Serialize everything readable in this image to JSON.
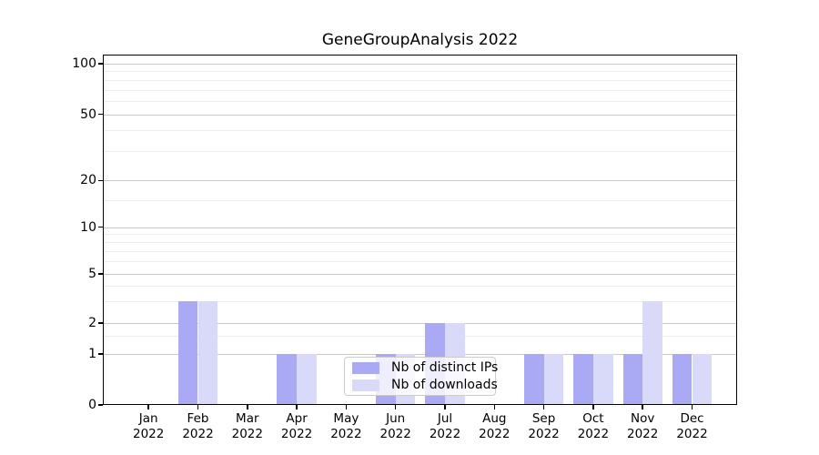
{
  "figure": {
    "title": "GeneGroupAnalysis 2022"
  },
  "chart_data": {
    "type": "bar",
    "title": "GeneGroupAnalysis 2022",
    "categories": [
      "Jan",
      "Feb",
      "Mar",
      "Apr",
      "May",
      "Jun",
      "Jul",
      "Aug",
      "Sep",
      "Oct",
      "Nov",
      "Dec"
    ],
    "x_year_label": "2022",
    "series": [
      {
        "name": "Nb of distinct IPs",
        "color": "#a9a9f4",
        "values": [
          0,
          3,
          0,
          1,
          0,
          1,
          2,
          0,
          1,
          1,
          1,
          1
        ]
      },
      {
        "name": "Nb of downloads",
        "color": "#d9d9f9",
        "values": [
          0,
          3,
          0,
          1,
          0,
          1,
          2,
          0,
          1,
          1,
          3,
          1
        ]
      }
    ],
    "y_axis": {
      "scale": "log-like-1-2-5",
      "major_ticks": [
        0,
        1,
        2,
        5,
        10,
        20,
        50,
        100
      ],
      "minor_ticks": [
        1.5,
        3,
        4,
        6,
        7,
        8,
        9,
        15,
        30,
        40,
        60,
        70,
        80,
        90
      ],
      "ylim": [
        0,
        113
      ],
      "grid": "horizontal major and minor"
    },
    "legend": {
      "position": "inside lower-center",
      "entries": [
        "Nb of distinct IPs",
        "Nb of downloads"
      ]
    }
  }
}
